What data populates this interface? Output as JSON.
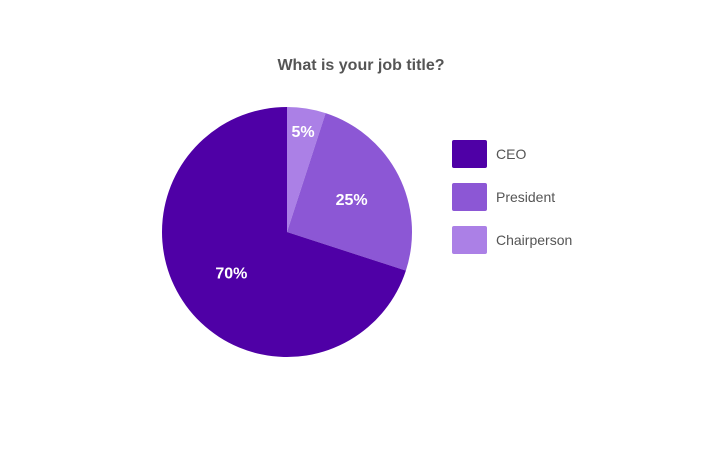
{
  "chart_data": {
    "type": "pie",
    "title": "What is your job title?",
    "categories": [
      "CEO",
      "President",
      "Chairperson"
    ],
    "values": [
      70,
      25,
      5
    ],
    "value_labels": [
      "70%",
      "25%",
      "5%"
    ],
    "colors": [
      "#4f00a6",
      "#8c57d5",
      "#ab80e6"
    ],
    "legend": {
      "placement": "right",
      "entries": [
        "CEO",
        "President",
        "Chairperson"
      ]
    },
    "start_angle": "top",
    "direction": "counterclockwise-from-ceo"
  }
}
